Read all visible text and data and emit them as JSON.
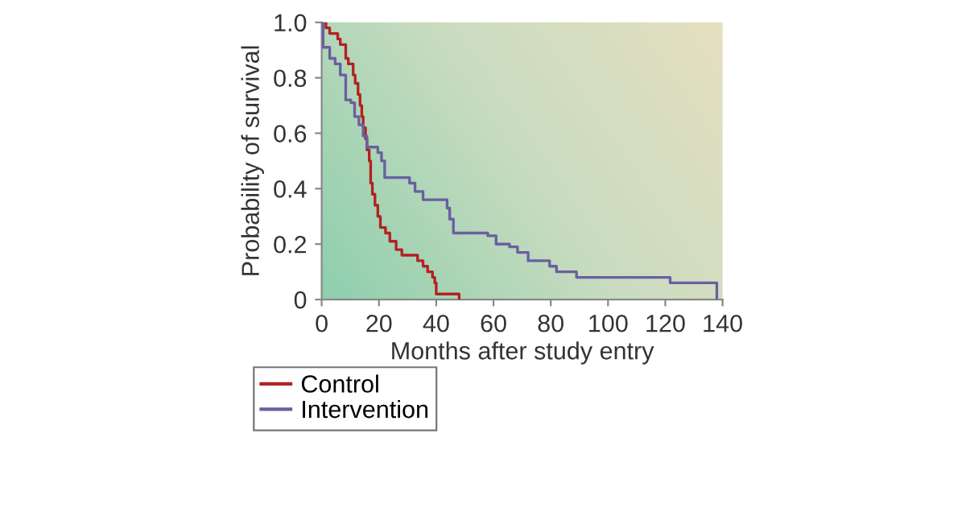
{
  "chart_data": {
    "type": "step",
    "xlabel": "Months after study entry",
    "ylabel": "Probability of survival",
    "xlim": [
      0,
      140
    ],
    "ylim": [
      0,
      1.0
    ],
    "xticks": [
      0,
      20,
      40,
      60,
      80,
      100,
      120,
      140
    ],
    "yticks": [
      0,
      0.2,
      0.4,
      0.6,
      0.8,
      {
        "value": 1,
        "label": "1.0"
      }
    ],
    "legend": "bottom left",
    "grid": false,
    "marker": "none",
    "line_style": "solid",
    "series": [
      {
        "name": "Control",
        "color": "#b22222",
        "x": [
          0,
          1.5,
          2.8,
          5.6,
          6.5,
          8.4,
          9.3,
          11,
          11.7,
          12.7,
          13.4,
          14,
          14.5,
          15.3,
          15.8,
          16.6,
          17.1,
          17.7,
          18.6,
          19.6,
          20.5,
          22.3,
          23.8,
          26,
          28,
          33.5,
          35.4,
          37,
          38.7,
          39.5,
          40,
          48
        ],
        "values": [
          1.0,
          0.98,
          0.96,
          0.94,
          0.92,
          0.87,
          0.85,
          0.81,
          0.78,
          0.74,
          0.7,
          0.66,
          0.62,
          0.58,
          0.54,
          0.5,
          0.42,
          0.38,
          0.34,
          0.3,
          0.26,
          0.24,
          0.21,
          0.18,
          0.16,
          0.14,
          0.12,
          0.1,
          0.08,
          0.06,
          0.02,
          0
        ]
      },
      {
        "name": "Intervention",
        "color": "#6a5fa0",
        "x": [
          0,
          0.5,
          2.8,
          4.7,
          6.5,
          8.4,
          10.2,
          11.5,
          13,
          14.5,
          15.8,
          19.6,
          20.9,
          22,
          30.7,
          32.6,
          35.4,
          43.8,
          44.7,
          46,
          58,
          60.9,
          65.6,
          68.4,
          72.1,
          79.6,
          82,
          89,
          121.7,
          138
        ],
        "values": [
          1.0,
          0.91,
          0.87,
          0.85,
          0.81,
          0.72,
          0.71,
          0.66,
          0.63,
          0.59,
          0.55,
          0.53,
          0.5,
          0.44,
          0.42,
          0.39,
          0.36,
          0.33,
          0.29,
          0.24,
          0.23,
          0.2,
          0.19,
          0.17,
          0.14,
          0.12,
          0.1,
          0.08,
          0.06,
          0
        ]
      }
    ]
  }
}
